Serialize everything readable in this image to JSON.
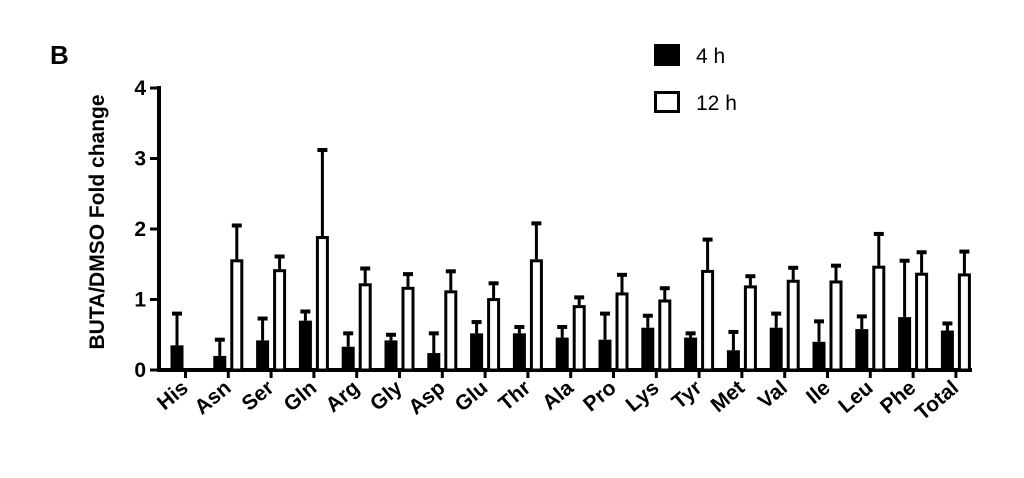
{
  "panel_label": "B",
  "chart_data": {
    "type": "bar",
    "title": "",
    "xlabel": "",
    "ylabel": "BUTA/DMSO Fold change",
    "ylim": [
      0,
      4
    ],
    "yticks": [
      0,
      1,
      2,
      3,
      4
    ],
    "categories": [
      "His",
      "Asn",
      "Ser",
      "Gln",
      "Arg",
      "Gly",
      "Asp",
      "Glu",
      "Thr",
      "Ala",
      "Pro",
      "Lys",
      "Tyr",
      "Met",
      "Val",
      "Ile",
      "Leu",
      "Phe",
      "Total"
    ],
    "legend_position": "top-right",
    "grid": false,
    "series": [
      {
        "name": "4 h",
        "fill": "#000000",
        "values": [
          0.35,
          0.2,
          0.42,
          0.7,
          0.33,
          0.42,
          0.24,
          0.52,
          0.52,
          0.46,
          0.43,
          0.6,
          0.46,
          0.28,
          0.6,
          0.4,
          0.58,
          0.75,
          0.56
        ],
        "errors": [
          0.45,
          0.23,
          0.31,
          0.13,
          0.19,
          0.08,
          0.28,
          0.16,
          0.09,
          0.15,
          0.37,
          0.17,
          0.06,
          0.26,
          0.2,
          0.29,
          0.18,
          0.8,
          0.1
        ]
      },
      {
        "name": "12 h",
        "fill": "#ffffff",
        "values": [
          0,
          1.57,
          1.43,
          1.9,
          1.23,
          1.18,
          1.13,
          1.02,
          1.57,
          0.92,
          1.1,
          1.0,
          1.42,
          1.2,
          1.28,
          1.27,
          1.48,
          1.38,
          1.37
        ],
        "errors": [
          0,
          0.48,
          0.18,
          1.22,
          0.21,
          0.18,
          0.27,
          0.21,
          0.51,
          0.11,
          0.25,
          0.16,
          0.43,
          0.13,
          0.17,
          0.21,
          0.45,
          0.29,
          0.31
        ]
      }
    ]
  }
}
